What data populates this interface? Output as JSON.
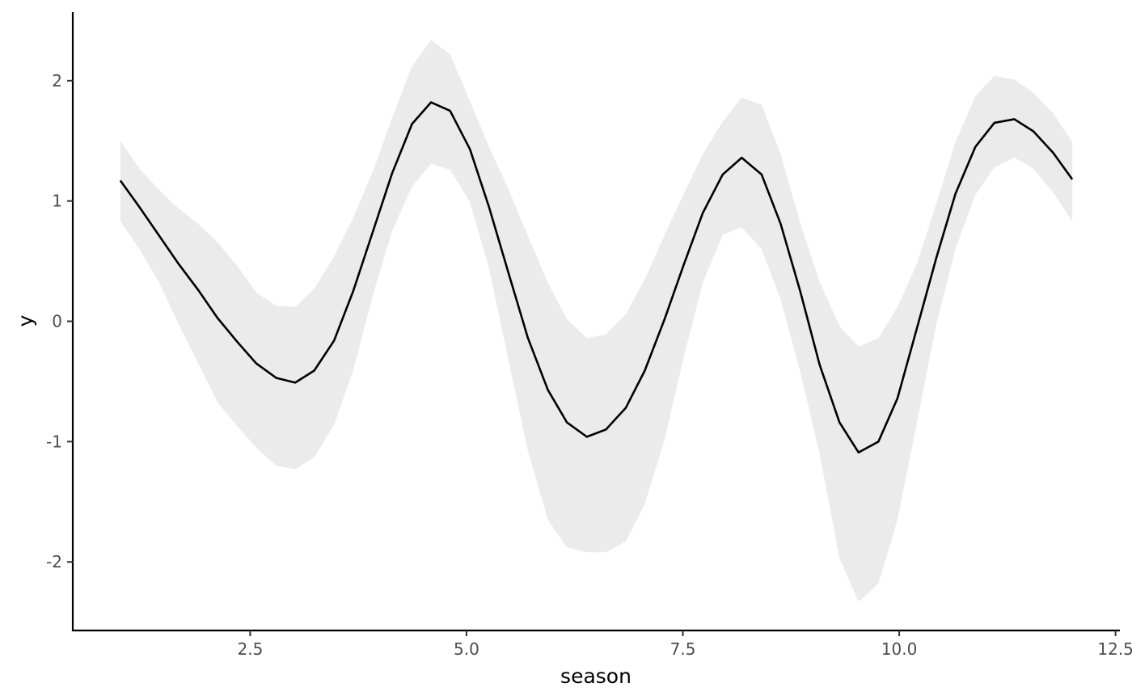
{
  "chart_data": {
    "type": "line",
    "title": "",
    "xlabel": "season",
    "ylabel": "y",
    "xlim": [
      0.45,
      12.55
    ],
    "ylim": [
      -2.57,
      2.57
    ],
    "x_ticks": [
      2.5,
      5.0,
      7.5,
      10.0,
      12.5
    ],
    "x_tick_labels": [
      "2.5",
      "5.0",
      "7.5",
      "10.0",
      "12.5"
    ],
    "y_ticks": [
      -2,
      -1,
      0,
      1,
      2
    ],
    "y_tick_labels": [
      "-2",
      "-1",
      "0",
      "1",
      "2"
    ],
    "grid": false,
    "legend": "none",
    "colors": {
      "line": "#000000",
      "ribbon": "#ebebeb",
      "axis": "#000000"
    },
    "x": [
      1.0,
      1.22,
      1.45,
      1.67,
      1.9,
      2.12,
      2.35,
      2.57,
      2.8,
      3.02,
      3.24,
      3.47,
      3.69,
      3.92,
      4.14,
      4.37,
      4.59,
      4.81,
      5.04,
      5.26,
      5.49,
      5.71,
      5.94,
      6.16,
      6.39,
      6.61,
      6.84,
      7.06,
      7.29,
      7.51,
      7.73,
      7.96,
      8.18,
      8.41,
      8.63,
      8.86,
      9.08,
      9.31,
      9.53,
      9.76,
      9.98,
      10.2,
      10.43,
      10.65,
      10.88,
      11.1,
      11.33,
      11.55,
      11.78,
      12.0
    ],
    "series": [
      {
        "values": [
          1.17,
          0.95,
          0.71,
          0.48,
          0.26,
          0.03,
          -0.17,
          -0.35,
          -0.47,
          -0.51,
          -0.41,
          -0.16,
          0.25,
          0.75,
          1.23,
          1.64,
          1.82,
          1.75,
          1.43,
          0.95,
          0.39,
          -0.14,
          -0.57,
          -0.84,
          -0.96,
          -0.9,
          -0.72,
          -0.41,
          0.02,
          0.47,
          0.9,
          1.22,
          1.36,
          1.22,
          0.81,
          0.24,
          -0.36,
          -0.84,
          -1.09,
          -1.0,
          -0.64,
          -0.07,
          0.53,
          1.06,
          1.45,
          1.65,
          1.68,
          1.58,
          1.4,
          1.18
        ],
        "lower": [
          0.83,
          0.6,
          0.32,
          -0.02,
          -0.35,
          -0.67,
          -0.87,
          -1.05,
          -1.2,
          -1.23,
          -1.13,
          -0.86,
          -0.41,
          0.22,
          0.75,
          1.12,
          1.31,
          1.26,
          0.99,
          0.44,
          -0.34,
          -1.08,
          -1.65,
          -1.88,
          -1.92,
          -1.92,
          -1.83,
          -1.52,
          -0.98,
          -0.3,
          0.32,
          0.72,
          0.78,
          0.6,
          0.18,
          -0.43,
          -1.1,
          -1.97,
          -2.33,
          -2.18,
          -1.65,
          -0.86,
          -0.02,
          0.6,
          1.05,
          1.28,
          1.36,
          1.27,
          1.07,
          0.83
        ],
        "upper": [
          1.5,
          1.27,
          1.09,
          0.94,
          0.81,
          0.66,
          0.46,
          0.24,
          0.13,
          0.12,
          0.27,
          0.54,
          0.86,
          1.25,
          1.69,
          2.12,
          2.34,
          2.22,
          1.83,
          1.45,
          1.09,
          0.71,
          0.32,
          0.02,
          -0.14,
          -0.11,
          0.06,
          0.35,
          0.72,
          1.06,
          1.39,
          1.66,
          1.86,
          1.8,
          1.39,
          0.81,
          0.33,
          -0.04,
          -0.21,
          -0.14,
          0.12,
          0.47,
          0.98,
          1.49,
          1.87,
          2.04,
          2.01,
          1.9,
          1.73,
          1.49
        ]
      }
    ]
  }
}
